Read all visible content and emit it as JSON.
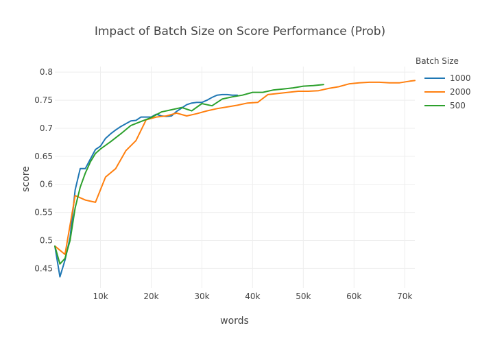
{
  "chart_data": {
    "type": "line",
    "title": "Impact of Batch Size on Score Performance (Prob)",
    "xlabel": "words",
    "ylabel": "score",
    "xlim": [
      1000,
      72000
    ],
    "ylim": [
      0.415,
      0.81
    ],
    "x_ticks": [
      10000,
      20000,
      30000,
      40000,
      50000,
      60000,
      70000
    ],
    "x_tick_labels": [
      "10k",
      "20k",
      "30k",
      "40k",
      "50k",
      "60k",
      "70k"
    ],
    "y_ticks": [
      0.45,
      0.5,
      0.55,
      0.6,
      0.65,
      0.7,
      0.75,
      0.8
    ],
    "y_tick_labels": [
      "0.45",
      "0.5",
      "0.55",
      "0.6",
      "0.65",
      "0.7",
      "0.75",
      "0.8"
    ],
    "grid": true,
    "legend_title": "Batch Size",
    "legend_position": "top-right",
    "series": [
      {
        "name": "1000",
        "color": "#1f77b4",
        "points": [
          [
            1000,
            0.49
          ],
          [
            2000,
            0.435
          ],
          [
            3000,
            0.465
          ],
          [
            4000,
            0.505
          ],
          [
            5000,
            0.59
          ],
          [
            6000,
            0.628
          ],
          [
            7000,
            0.628
          ],
          [
            8000,
            0.645
          ],
          [
            9000,
            0.662
          ],
          [
            10000,
            0.668
          ],
          [
            11000,
            0.682
          ],
          [
            12000,
            0.69
          ],
          [
            13000,
            0.697
          ],
          [
            14000,
            0.703
          ],
          [
            15000,
            0.708
          ],
          [
            16000,
            0.713
          ],
          [
            17000,
            0.714
          ],
          [
            18000,
            0.72
          ],
          [
            19000,
            0.72
          ],
          [
            20000,
            0.72
          ],
          [
            21000,
            0.725
          ],
          [
            22000,
            0.722
          ],
          [
            23000,
            0.721
          ],
          [
            24000,
            0.722
          ],
          [
            25000,
            0.73
          ],
          [
            26000,
            0.736
          ],
          [
            27000,
            0.742
          ],
          [
            28000,
            0.745
          ],
          [
            29000,
            0.746
          ],
          [
            30000,
            0.746
          ],
          [
            31000,
            0.75
          ],
          [
            32000,
            0.755
          ],
          [
            33000,
            0.759
          ],
          [
            34000,
            0.76
          ],
          [
            35000,
            0.76
          ],
          [
            36000,
            0.759
          ],
          [
            37000,
            0.759
          ]
        ]
      },
      {
        "name": "2000",
        "color": "#ff7f0e",
        "points": [
          [
            1000,
            0.49
          ],
          [
            3000,
            0.475
          ],
          [
            5000,
            0.58
          ],
          [
            7000,
            0.572
          ],
          [
            9000,
            0.568
          ],
          [
            11000,
            0.613
          ],
          [
            13000,
            0.628
          ],
          [
            15000,
            0.66
          ],
          [
            17000,
            0.678
          ],
          [
            19000,
            0.715
          ],
          [
            21000,
            0.72
          ],
          [
            23000,
            0.722
          ],
          [
            25000,
            0.727
          ],
          [
            27000,
            0.722
          ],
          [
            29000,
            0.726
          ],
          [
            31000,
            0.731
          ],
          [
            33000,
            0.735
          ],
          [
            35000,
            0.738
          ],
          [
            37000,
            0.741
          ],
          [
            39000,
            0.745
          ],
          [
            41000,
            0.746
          ],
          [
            43000,
            0.76
          ],
          [
            45000,
            0.762
          ],
          [
            47000,
            0.764
          ],
          [
            49000,
            0.766
          ],
          [
            51000,
            0.766
          ],
          [
            53000,
            0.767
          ],
          [
            55000,
            0.771
          ],
          [
            57000,
            0.774
          ],
          [
            59000,
            0.779
          ],
          [
            61000,
            0.781
          ],
          [
            63000,
            0.782
          ],
          [
            65000,
            0.782
          ],
          [
            67000,
            0.781
          ],
          [
            69000,
            0.781
          ],
          [
            71000,
            0.784
          ],
          [
            72000,
            0.785
          ]
        ]
      },
      {
        "name": "500",
        "color": "#2ca02c",
        "points": [
          [
            1000,
            0.49
          ],
          [
            2000,
            0.458
          ],
          [
            3000,
            0.468
          ],
          [
            4000,
            0.5
          ],
          [
            5000,
            0.558
          ],
          [
            6000,
            0.595
          ],
          [
            7000,
            0.62
          ],
          [
            8000,
            0.64
          ],
          [
            9000,
            0.655
          ],
          [
            10000,
            0.663
          ],
          [
            12000,
            0.676
          ],
          [
            14000,
            0.69
          ],
          [
            16000,
            0.705
          ],
          [
            18000,
            0.712
          ],
          [
            20000,
            0.719
          ],
          [
            22000,
            0.729
          ],
          [
            24000,
            0.733
          ],
          [
            26000,
            0.737
          ],
          [
            28000,
            0.731
          ],
          [
            30000,
            0.744
          ],
          [
            32000,
            0.74
          ],
          [
            34000,
            0.752
          ],
          [
            36000,
            0.756
          ],
          [
            38000,
            0.759
          ],
          [
            40000,
            0.764
          ],
          [
            42000,
            0.764
          ],
          [
            44000,
            0.768
          ],
          [
            46000,
            0.77
          ],
          [
            48000,
            0.772
          ],
          [
            50000,
            0.775
          ],
          [
            52000,
            0.776
          ],
          [
            54000,
            0.778
          ]
        ]
      }
    ]
  }
}
